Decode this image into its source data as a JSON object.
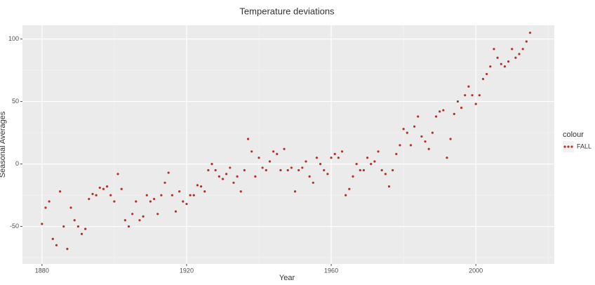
{
  "chart_data": {
    "type": "scatter",
    "title": "Temperature deviations",
    "x_label": "Year",
    "y_label": "Seasonal Averages",
    "legend_title": "colour",
    "legend_position": "right",
    "grid": true,
    "xlim": [
      1874.6,
      2021.7
    ],
    "ylim": [
      -80,
      111
    ],
    "xticks": [
      1880,
      1920,
      1960,
      2000
    ],
    "yticks": [
      -50,
      0,
      50,
      100
    ],
    "x": [
      1880,
      1881,
      1882,
      1883,
      1884,
      1885,
      1886,
      1887,
      1888,
      1889,
      1890,
      1891,
      1892,
      1893,
      1894,
      1895,
      1896,
      1897,
      1898,
      1899,
      1900,
      1901,
      1902,
      1903,
      1904,
      1905,
      1906,
      1907,
      1908,
      1909,
      1910,
      1911,
      1912,
      1913,
      1914,
      1915,
      1916,
      1917,
      1918,
      1919,
      1920,
      1921,
      1922,
      1923,
      1924,
      1925,
      1926,
      1927,
      1928,
      1929,
      1930,
      1931,
      1932,
      1933,
      1934,
      1935,
      1936,
      1937,
      1938,
      1939,
      1940,
      1941,
      1942,
      1943,
      1944,
      1945,
      1946,
      1947,
      1948,
      1949,
      1950,
      1951,
      1952,
      1953,
      1954,
      1955,
      1956,
      1957,
      1958,
      1959,
      1960,
      1961,
      1962,
      1963,
      1964,
      1965,
      1966,
      1967,
      1968,
      1969,
      1970,
      1971,
      1972,
      1973,
      1974,
      1975,
      1976,
      1977,
      1978,
      1979,
      1980,
      1981,
      1982,
      1983,
      1984,
      1985,
      1986,
      1987,
      1988,
      1989,
      1990,
      1991,
      1992,
      1993,
      1994,
      1995,
      1996,
      1997,
      1998,
      1999,
      2000,
      2001,
      2002,
      2003,
      2004,
      2005,
      2006,
      2007,
      2008,
      2009,
      2010,
      2011,
      2012,
      2013,
      2014,
      2015
    ],
    "series": [
      {
        "name": "FALL",
        "color": "#b2322a",
        "values": [
          -48,
          -35,
          -30,
          -60,
          -65,
          -22,
          -50,
          -68,
          -35,
          -45,
          -50,
          -56,
          -52,
          -28,
          -24,
          -25,
          -19,
          -20,
          -18,
          -25,
          -30,
          -8,
          -20,
          -45,
          -50,
          -40,
          -30,
          -45,
          -42,
          -25,
          -30,
          -28,
          -40,
          -25,
          -15,
          -7,
          -25,
          -38,
          -22,
          -30,
          -32,
          -25,
          -25,
          -17,
          -18,
          -22,
          -5,
          0,
          -5,
          -10,
          -12,
          -8,
          -3,
          -15,
          -10,
          -22,
          -5,
          20,
          10,
          -10,
          5,
          -3,
          -5,
          2,
          10,
          8,
          -5,
          12,
          -5,
          -3,
          -22,
          -5,
          -3,
          2,
          -10,
          -15,
          5,
          0,
          -5,
          -8,
          5,
          8,
          5,
          10,
          -25,
          -20,
          -10,
          0,
          -5,
          -5,
          5,
          0,
          2,
          10,
          -5,
          -8,
          -18,
          -5,
          8,
          15,
          28,
          25,
          15,
          30,
          38,
          22,
          18,
          12,
          25,
          38,
          42,
          43,
          5,
          20,
          40,
          50,
          45,
          55,
          62,
          55,
          48,
          55,
          68,
          72,
          78,
          92,
          85,
          80,
          78,
          82,
          92,
          85,
          88,
          92,
          98,
          105
        ]
      }
    ]
  }
}
